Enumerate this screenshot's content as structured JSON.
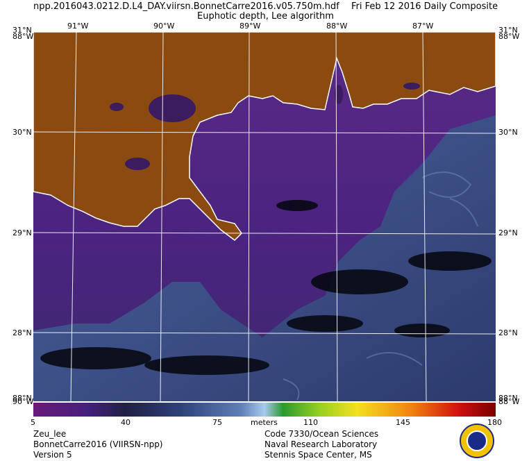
{
  "header": {
    "file_name": "npp.2016043.0212.D.L4_DAY.viirsn.BonnetCarre2016.v05.750m.hdf",
    "date_label": "Fri Feb 12 2016 Daily Composite",
    "product": "Euphotic depth, Lee algorithm"
  },
  "map": {
    "lon_labels": [
      "91°W",
      "90°W",
      "89°W",
      "88°W",
      "87°W"
    ],
    "lat_labels": [
      "31°N",
      "30°N",
      "29°N",
      "28°N"
    ],
    "corner_labels": {
      "top_left_lat": "31°N",
      "top_left_lon": "88°W",
      "top_right_lat": "31°N",
      "top_right_lon": "88°W",
      "bottom_left_lat": "88°N",
      "bottom_left_lon": "90°W",
      "bottom_right_lat": "88°N",
      "bottom_right_lon": "88°W"
    },
    "colors": {
      "land": "#8a4a10",
      "coast": "#ffffff",
      "grid": "#ffffff"
    }
  },
  "colorbar": {
    "ticks": [
      "5",
      "40",
      "75",
      "110",
      "145",
      "180"
    ],
    "unit": "meters",
    "min": 5,
    "max": 180
  },
  "footer": {
    "left": [
      "Zeu_lee",
      "BonnetCarre2016 (VIIRSN-npp)",
      "Version 5"
    ],
    "right": [
      "Code 7330/Ocean Sciences",
      "Naval Research Laboratory",
      "Stennis Space Center, MS"
    ]
  }
}
